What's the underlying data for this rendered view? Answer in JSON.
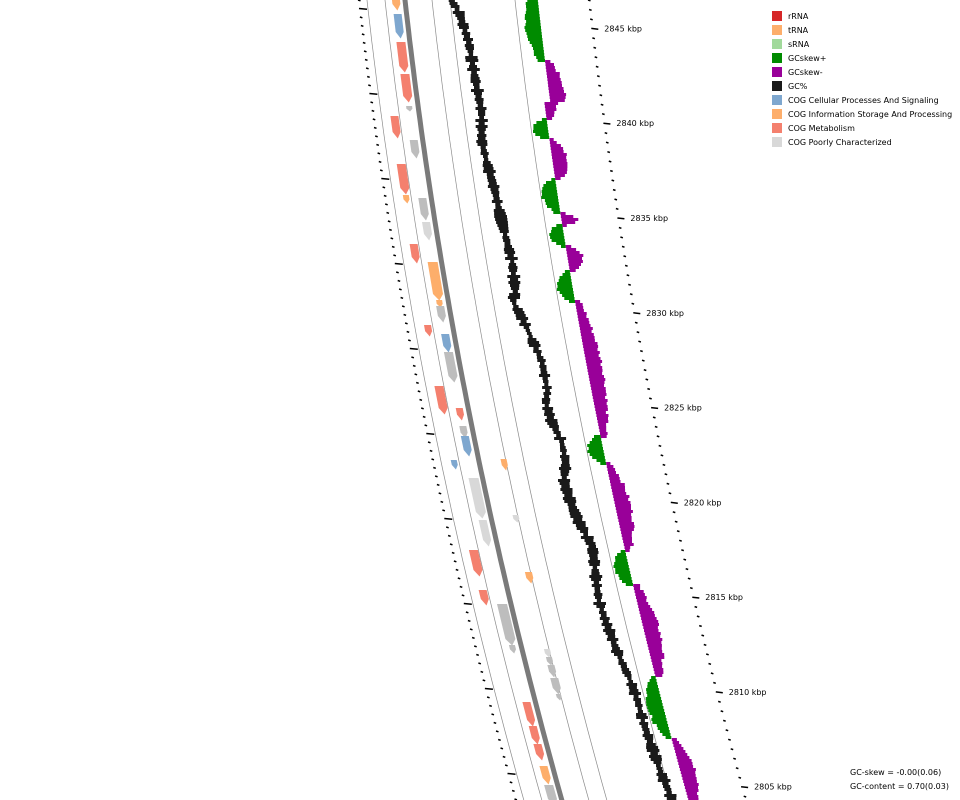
{
  "legend": [
    {
      "label": "rRNA",
      "color": "#d62728"
    },
    {
      "label": "tRNA",
      "color": "#fdae6b"
    },
    {
      "label": "sRNA",
      "color": "#a1d99b"
    },
    {
      "label": "GCskew+",
      "color": "#008b00"
    },
    {
      "label": "GCskew-",
      "color": "#990099"
    },
    {
      "label": "GC%",
      "color": "#1a1a1a"
    },
    {
      "label": "COG Cellular Processes And Signaling",
      "color": "#7ea7cf"
    },
    {
      "label": "COG Information Storage And Processing",
      "color": "#fdae6b"
    },
    {
      "label": "COG Metabolism",
      "color": "#f4806e"
    },
    {
      "label": "COG Poorly Characterized",
      "color": "#d8d8d8"
    }
  ],
  "ticks": [
    {
      "kbp": 2845,
      "label": "2845 kbp"
    },
    {
      "kbp": 2840,
      "label": "2840 kbp"
    },
    {
      "kbp": 2835,
      "label": "2835 kbp"
    },
    {
      "kbp": 2830,
      "label": "2830 kbp"
    },
    {
      "kbp": 2825,
      "label": "2825 kbp"
    },
    {
      "kbp": 2820,
      "label": "2820 kbp"
    },
    {
      "kbp": 2815,
      "label": "2815 kbp"
    },
    {
      "kbp": 2810,
      "label": "2810 kbp"
    },
    {
      "kbp": 2805,
      "label": "2805 kbp"
    }
  ],
  "stats": {
    "gc_skew": "GC-skew = -0.00(0.06)",
    "gc_content": "GC-content = 0.70(0.03)"
  },
  "colors": {
    "metabolism": "#f4806e",
    "cellular": "#7ea7cf",
    "information": "#fdae6b",
    "poor": "#d8d8d8",
    "poor_dark": "#bdbdbd",
    "gc": "#1a1a1a",
    "skew_pos": "#008b00",
    "skew_neg": "#990099",
    "backbone": "#7a7a7a"
  }
}
